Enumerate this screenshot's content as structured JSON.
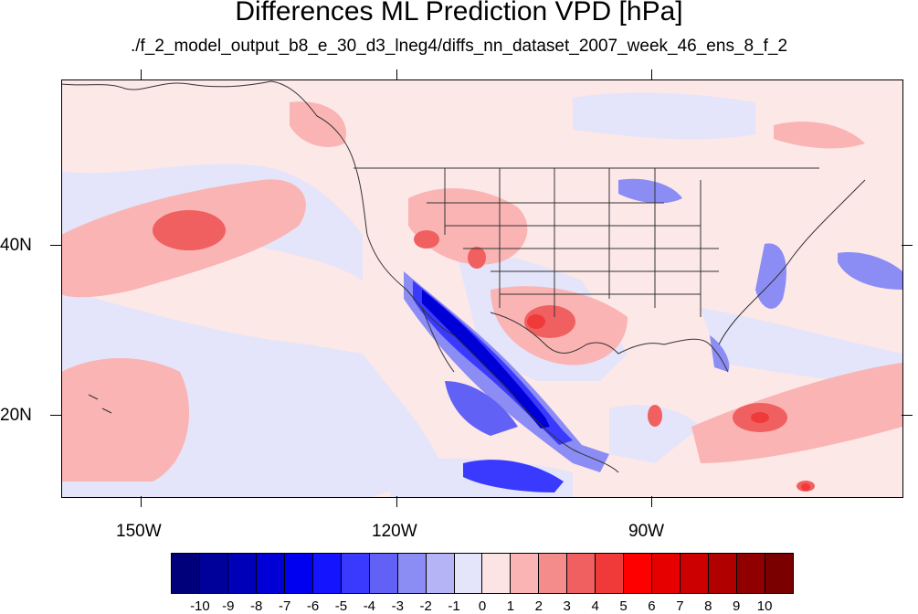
{
  "title": "Differences ML Prediction VPD [hPa]",
  "subtitle": "./f_2_model_output_b8_e_30_d3_lneg4/diffs_nn_dataset_2007_week_46_ens_8_f_2",
  "axes": {
    "lat_labels": [
      "40N",
      "20N"
    ],
    "lon_labels": [
      "150W",
      "120W",
      "90W"
    ]
  },
  "colorbar": {
    "labels": [
      "-10",
      "-9",
      "-8",
      "-7",
      "-6",
      "-5",
      "-4",
      "-3",
      "-2",
      "-1",
      "0",
      "1",
      "2",
      "3",
      "4",
      "5",
      "6",
      "7",
      "8",
      "9",
      "10"
    ],
    "colors": [
      "#00007a",
      "#00009a",
      "#0000b8",
      "#0000d6",
      "#0000f0",
      "#1414ff",
      "#3a3aff",
      "#6161f5",
      "#8c8cf5",
      "#b4b4f7",
      "#e4e4fa",
      "#fde4e4",
      "#fab4b4",
      "#f58c8c",
      "#f06060",
      "#f03a3a",
      "#ff0000",
      "#e60000",
      "#cc0000",
      "#b00000",
      "#900000",
      "#7a0000"
    ]
  },
  "chart_data": {
    "type": "heatmap",
    "title": "Differences ML Prediction VPD [hPa]",
    "subtitle": "./f_2_model_output_b8_e_30_d3_lneg4/diffs_nn_dataset_2007_week_46_ens_8_f_2",
    "x_ticks": [
      "150W",
      "120W",
      "90W"
    ],
    "y_ticks": [
      "40N",
      "20N"
    ],
    "colorbar_range": [
      -10,
      10
    ]
  }
}
